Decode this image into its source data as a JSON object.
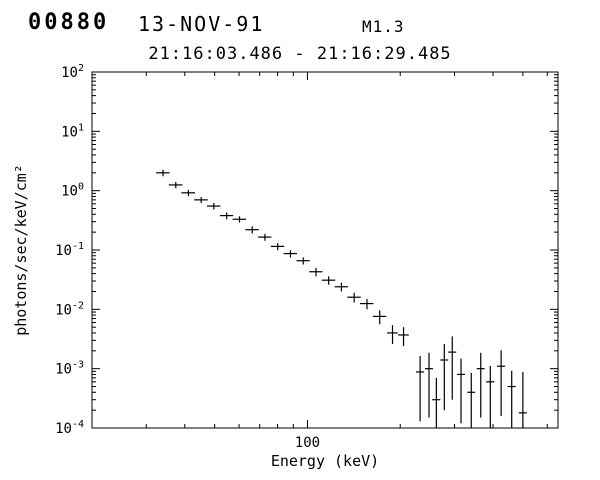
{
  "header": {
    "flare_id": "00880",
    "date": "13-NOV-91",
    "goes_class": "M1.3",
    "time_range": "21:16:03.486 - 21:16:29.485"
  },
  "chart_data": {
    "type": "scatter",
    "title": "00880 13-NOV-91 M1.3",
    "subtitle": "21:16:03.486 - 21:16:29.485",
    "xlabel": "Energy (keV)",
    "ylabel": "photons/sec/keV/cm²",
    "x_scale": "log",
    "y_scale": "log",
    "xlim": [
      20,
      650
    ],
    "ylim": [
      0.0001,
      100.0
    ],
    "x_major_ticks": [
      100
    ],
    "x_minor_ticks": [
      30,
      40,
      50,
      60,
      70,
      80,
      90,
      200,
      300,
      400,
      500,
      600
    ],
    "y_tick_exponents": [
      2,
      1,
      0,
      -1,
      -2,
      -3,
      -4
    ],
    "grid": false,
    "legend": "none",
    "error_bars": true,
    "points": [
      {
        "x": 34.0,
        "y": 2.0,
        "xerr": 1.7,
        "yerr": 0.25
      },
      {
        "x": 37.4,
        "y": 1.25,
        "xerr": 1.9,
        "yerr": 0.15
      },
      {
        "x": 41.1,
        "y": 0.92,
        "xerr": 2.1,
        "yerr": 0.11
      },
      {
        "x": 45.2,
        "y": 0.7,
        "xerr": 2.3,
        "yerr": 0.08
      },
      {
        "x": 49.7,
        "y": 0.55,
        "xerr": 2.5,
        "yerr": 0.07
      },
      {
        "x": 54.7,
        "y": 0.38,
        "xerr": 2.7,
        "yerr": 0.05
      },
      {
        "x": 60.2,
        "y": 0.33,
        "xerr": 3.0,
        "yerr": 0.04
      },
      {
        "x": 66.2,
        "y": 0.22,
        "xerr": 3.3,
        "yerr": 0.03
      },
      {
        "x": 72.8,
        "y": 0.165,
        "xerr": 3.6,
        "yerr": 0.022
      },
      {
        "x": 80.1,
        "y": 0.115,
        "xerr": 4.0,
        "yerr": 0.016
      },
      {
        "x": 88.1,
        "y": 0.087,
        "xerr": 4.4,
        "yerr": 0.012
      },
      {
        "x": 96.9,
        "y": 0.066,
        "xerr": 4.8,
        "yerr": 0.009
      },
      {
        "x": 106.6,
        "y": 0.043,
        "xerr": 5.3,
        "yerr": 0.007
      },
      {
        "x": 117.2,
        "y": 0.031,
        "xerr": 5.9,
        "yerr": 0.005
      },
      {
        "x": 128.9,
        "y": 0.024,
        "xerr": 6.4,
        "yerr": 0.004
      },
      {
        "x": 141.8,
        "y": 0.016,
        "xerr": 7.1,
        "yerr": 0.003
      },
      {
        "x": 156.0,
        "y": 0.0125,
        "xerr": 7.8,
        "yerr": 0.0025
      },
      {
        "x": 171.6,
        "y": 0.0076,
        "xerr": 8.6,
        "yerr": 0.002
      },
      {
        "x": 188.8,
        "y": 0.004,
        "xerr": 7.5,
        "yerr": 0.0014
      },
      {
        "x": 205.0,
        "y": 0.0037,
        "xerr": 8.2,
        "yerr": 0.0013
      },
      {
        "x": 232,
        "y": 0.00088,
        "xerr": 7.0,
        "yerr": 0.00075
      },
      {
        "x": 248,
        "y": 0.001,
        "xerr": 7.4,
        "yerr": 0.00085
      },
      {
        "x": 262,
        "y": 0.0003,
        "xerr": 7.9,
        "yerr": 0.0004
      },
      {
        "x": 278,
        "y": 0.0014,
        "xerr": 8.3,
        "yerr": 0.0012
      },
      {
        "x": 295,
        "y": 0.0019,
        "xerr": 8.9,
        "yerr": 0.0016
      },
      {
        "x": 315,
        "y": 0.0008,
        "xerr": 9.5,
        "yerr": 0.00068
      },
      {
        "x": 340,
        "y": 0.0004,
        "xerr": 10,
        "yerr": 0.00045
      },
      {
        "x": 365,
        "y": 0.001,
        "xerr": 11,
        "yerr": 0.00085
      },
      {
        "x": 392,
        "y": 0.0006,
        "xerr": 12,
        "yerr": 0.00051
      },
      {
        "x": 425,
        "y": 0.0011,
        "xerr": 13,
        "yerr": 0.00094
      },
      {
        "x": 460,
        "y": 0.0005,
        "xerr": 14,
        "yerr": 0.00042
      },
      {
        "x": 500,
        "y": 0.00018,
        "xerr": 15,
        "yerr": 0.0007
      }
    ]
  }
}
